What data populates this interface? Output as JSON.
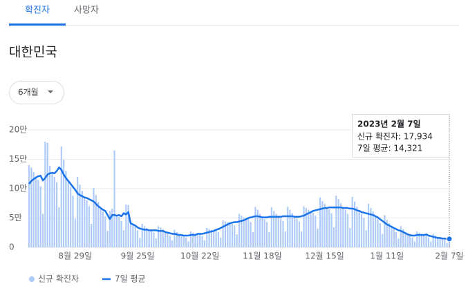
{
  "tabs": [
    "확진자",
    "사망자"
  ],
  "heading": "대한민국",
  "range_selector": "6개월",
  "chart_data": {
    "type": "bar-line",
    "categories": [
      null,
      null,
      null,
      null,
      null,
      null,
      null,
      null,
      null,
      null,
      null,
      null,
      null,
      null,
      null,
      null,
      null,
      null,
      null,
      null,
      "8월 29일",
      null,
      null,
      null,
      null,
      null,
      null,
      null,
      null,
      null,
      null,
      null,
      null,
      null,
      null,
      null,
      null,
      null,
      null,
      null,
      null,
      null,
      null,
      null,
      null,
      null,
      null,
      "9월 25일",
      null,
      null,
      null,
      null,
      null,
      null,
      null,
      null,
      null,
      null,
      null,
      null,
      null,
      null,
      null,
      null,
      null,
      null,
      null,
      null,
      null,
      null,
      null,
      null,
      null,
      null,
      "10월 22일",
      null,
      null,
      null,
      null,
      null,
      null,
      null,
      null,
      null,
      null,
      null,
      null,
      null,
      null,
      null,
      null,
      null,
      null,
      null,
      null,
      null,
      null,
      null,
      null,
      null,
      null,
      "11월 18일",
      null,
      null,
      null,
      null,
      null,
      null,
      null,
      null,
      null,
      null,
      null,
      null,
      null,
      null,
      null,
      null,
      null,
      null,
      null,
      null,
      null,
      null,
      null,
      null,
      null,
      null,
      "12월 15일",
      null,
      null,
      null,
      null,
      null,
      null,
      null,
      null,
      null,
      null,
      null,
      null,
      null,
      null,
      null,
      null,
      null,
      null,
      null,
      null,
      null,
      null,
      null,
      null,
      null,
      null,
      "1월 11일",
      null,
      null,
      null,
      null,
      null,
      null,
      null,
      null,
      null,
      null,
      null,
      null,
      null,
      null,
      null,
      null,
      null,
      null,
      null,
      null,
      null,
      null,
      null,
      null,
      null,
      null,
      "2월 7일"
    ],
    "series": [
      {
        "name": "신규 확진자",
        "type": "bar",
        "color": "#aecbfa",
        "values": [
          140000,
          136000,
          128000,
          119000,
          115000,
          104000,
          57000,
          180000,
          178000,
          139000,
          127000,
          120000,
          111000,
          68000,
          172000,
          149000,
          130000,
          113000,
          103000,
          88000,
          49000,
          120000,
          107000,
          96000,
          85000,
          80000,
          70000,
          40000,
          101000,
          89000,
          77000,
          67000,
          61000,
          53000,
          28000,
          62000,
          66000,
          165000,
          54000,
          52000,
          45000,
          29000,
          73000,
          72000,
          45000,
          39000,
          35000,
          29000,
          16000,
          40000,
          36000,
          33000,
          29000,
          28000,
          25000,
          15000,
          36000,
          34000,
          31000,
          26000,
          24000,
          20000,
          12000,
          30000,
          26000,
          23000,
          21000,
          19000,
          17000,
          10000,
          27000,
          25000,
          23000,
          23000,
          22000,
          20000,
          12000,
          33000,
          31000,
          30000,
          28000,
          29000,
          26000,
          17000,
          46000,
          44000,
          43000,
          41000,
          40000,
          37000,
          22000,
          57000,
          54000,
          51000,
          48000,
          48000,
          43000,
          26000,
          69000,
          64000,
          57000,
          51000,
          48000,
          43000,
          26000,
          68000,
          62000,
          57000,
          52000,
          49000,
          45000,
          27000,
          69000,
          64000,
          58000,
          52000,
          49000,
          44000,
          27000,
          70000,
          67000,
          64000,
          60000,
          59000,
          54000,
          32000,
          85000,
          79000,
          74000,
          67000,
          65000,
          58000,
          34000,
          88000,
          82000,
          75000,
          67000,
          64000,
          57000,
          33000,
          86000,
          78000,
          69000,
          62000,
          57000,
          50000,
          29000,
          74000,
          67000,
          61000,
          53000,
          48000,
          41000,
          23000,
          55000,
          47000,
          41000,
          35000,
          31000,
          26000,
          15000,
          36000,
          31000,
          26000,
          22000,
          20000,
          17000,
          10000,
          27000,
          25000,
          23000,
          21000,
          21000,
          17000,
          10000,
          23000,
          20000,
          18000,
          16000,
          14000,
          13000,
          7000,
          17934
        ]
      },
      {
        "name": "7일 평균",
        "type": "line",
        "color": "#1a73e8",
        "values": [
          108000,
          113000,
          116000,
          119000,
          121000,
          122000,
          114000,
          118000,
          124000,
          126000,
          127000,
          126000,
          130000,
          136000,
          132000,
          124000,
          118000,
          113000,
          108000,
          103000,
          98000,
          92000,
          89000,
          87000,
          85000,
          84000,
          82000,
          80000,
          78000,
          74000,
          70000,
          67000,
          64000,
          62000,
          55000,
          48000,
          55000,
          55000,
          54000,
          55000,
          53000,
          58000,
          56000,
          60000,
          41000,
          39000,
          37000,
          34000,
          32000,
          31000,
          30000,
          30000,
          29000,
          29000,
          29000,
          29000,
          28000,
          28000,
          28000,
          26000,
          25000,
          24000,
          23000,
          23000,
          22000,
          21000,
          21000,
          20000,
          20000,
          20000,
          21000,
          21000,
          21000,
          23000,
          23000,
          23000,
          24000,
          25000,
          26000,
          27000,
          28000,
          30000,
          31000,
          33000,
          35000,
          37000,
          39000,
          41000,
          42000,
          43000,
          43000,
          44000,
          45000,
          46000,
          48000,
          50000,
          51000,
          52000,
          53000,
          53000,
          52000,
          51000,
          51000,
          51000,
          52000,
          52000,
          52000,
          52000,
          52000,
          52000,
          53000,
          53000,
          53000,
          53000,
          53000,
          52000,
          52000,
          52000,
          53000,
          54000,
          56000,
          58000,
          60000,
          62000,
          63000,
          64000,
          65000,
          66000,
          67000,
          67000,
          68000,
          68000,
          68000,
          68000,
          68000,
          68000,
          67000,
          67000,
          67000,
          66000,
          66000,
          65000,
          63000,
          62000,
          60000,
          59000,
          58000,
          57000,
          56000,
          55000,
          53000,
          51000,
          48000,
          45000,
          42000,
          39000,
          37000,
          35000,
          33000,
          31000,
          29000,
          28000,
          26000,
          24000,
          22000,
          21000,
          20000,
          20000,
          21000,
          21000,
          21000,
          21000,
          22000,
          20000,
          19000,
          18000,
          17000,
          16000,
          16000,
          15000,
          15000,
          14000,
          14321
        ]
      }
    ],
    "ylim": [
      0,
      200000
    ],
    "yticks": [
      0,
      {
        "value": 50000,
        "label": "5만"
      },
      {
        "value": 100000,
        "label": "10만"
      },
      {
        "value": 150000,
        "label": "15만"
      },
      {
        "value": 200000,
        "label": "20만"
      }
    ],
    "grid": true,
    "tooltip": {
      "title": "2023년 2월 7일",
      "lines": [
        "신규 확진자: 17,934",
        "7일 평균: 14,321"
      ]
    }
  }
}
